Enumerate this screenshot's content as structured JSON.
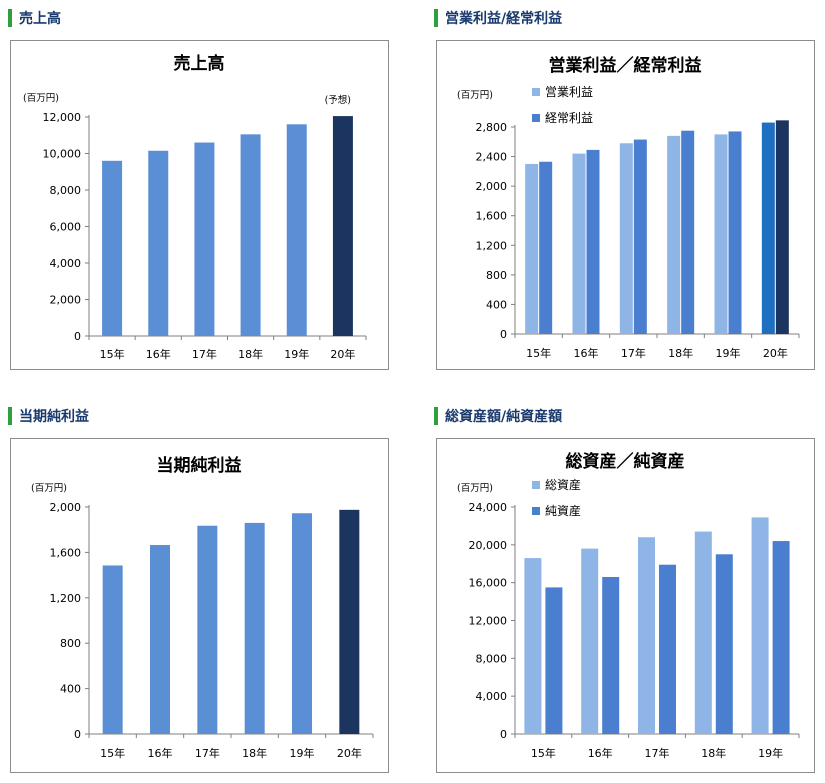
{
  "colors": {
    "accent_green": "#2e9e3e",
    "heading_blue": "#1a3a6e",
    "bar_blue": "#5a8fd6",
    "bar_light": "#8fb4e6",
    "bar_mid": "#4a7fd0",
    "bar_highlight_light": "#1f6fc0",
    "bar_highlight_dark": "#1b3560"
  },
  "sections": [
    {
      "heading": "売上高"
    },
    {
      "heading": "営業利益/経常利益"
    },
    {
      "heading": "当期純利益"
    },
    {
      "heading": "総資産額/純資産額"
    }
  ],
  "chart_data": [
    {
      "type": "bar",
      "title": "売上高",
      "unit": "(百万円)",
      "annotation": "(予想)",
      "categories": [
        "15年",
        "16年",
        "17年",
        "18年",
        "19年",
        "20年"
      ],
      "series": [
        {
          "values": [
            9600,
            10150,
            10600,
            11050,
            11600,
            12050
          ]
        }
      ],
      "highlight_last": true,
      "ylim": [
        0,
        12000
      ],
      "yticks": [
        0,
        2000,
        4000,
        6000,
        8000,
        10000,
        12000
      ],
      "ytick_labels": [
        "0",
        "2,000",
        "4,000",
        "6,000",
        "8,000",
        "10,000",
        "12,000"
      ],
      "grid": false,
      "legend": "none"
    },
    {
      "type": "bar",
      "title": "営業利益／経常利益",
      "unit": "(百万円)",
      "categories": [
        "15年",
        "16年",
        "17年",
        "18年",
        "19年",
        "20年"
      ],
      "series": [
        {
          "name": "営業利益",
          "values": [
            2300,
            2440,
            2580,
            2680,
            2700,
            2860
          ]
        },
        {
          "name": "経常利益",
          "values": [
            2330,
            2490,
            2630,
            2750,
            2740,
            2890
          ]
        }
      ],
      "highlight_last": true,
      "ylim": [
        0,
        2800
      ],
      "yticks": [
        0,
        400,
        800,
        1200,
        1600,
        2000,
        2400,
        2800
      ],
      "ytick_labels": [
        "0",
        "400",
        "800",
        "1,200",
        "1,600",
        "2,000",
        "2,400",
        "2,800"
      ],
      "grid": false,
      "legend": "top-left"
    },
    {
      "type": "bar",
      "title": "当期純利益",
      "unit": "(百万円)",
      "categories": [
        "15年",
        "16年",
        "17年",
        "18年",
        "19年",
        "20年"
      ],
      "series": [
        {
          "values": [
            1485,
            1665,
            1835,
            1860,
            1945,
            1975
          ]
        }
      ],
      "highlight_last": true,
      "ylim": [
        0,
        2000
      ],
      "yticks": [
        0,
        400,
        800,
        1200,
        1600,
        2000
      ],
      "ytick_labels": [
        "0",
        "400",
        "800",
        "1,200",
        "1,600",
        "2,000"
      ],
      "grid": false,
      "legend": "none"
    },
    {
      "type": "bar",
      "title": "総資産／純資産",
      "unit": "(百万円)",
      "categories": [
        "15年",
        "16年",
        "17年",
        "18年",
        "19年"
      ],
      "series": [
        {
          "name": "総資産",
          "values": [
            18600,
            19600,
            20800,
            21400,
            22900
          ]
        },
        {
          "name": "純資産",
          "values": [
            15500,
            16600,
            17900,
            19000,
            20400
          ]
        }
      ],
      "highlight_last": false,
      "ylim": [
        0,
        24000
      ],
      "yticks": [
        0,
        4000,
        8000,
        12000,
        16000,
        20000,
        24000
      ],
      "ytick_labels": [
        "0",
        "4,000",
        "8,000",
        "12,000",
        "16,000",
        "20,000",
        "24,000"
      ],
      "grid": false,
      "legend": "top-left"
    }
  ]
}
